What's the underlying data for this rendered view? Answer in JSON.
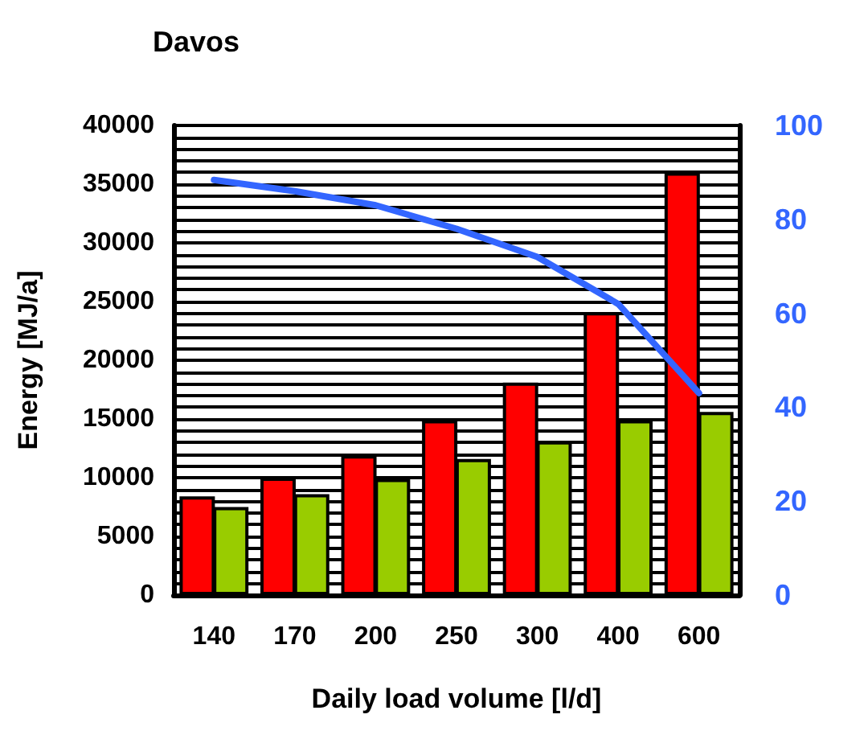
{
  "chart_data": {
    "type": "bar",
    "title": "Davos",
    "xlabel": "Daily load volume [l/d]",
    "ylabel": "Energy [MJ/a]",
    "categories": [
      "140",
      "170",
      "200",
      "250",
      "300",
      "400",
      "600"
    ],
    "series": [
      {
        "color": "#ff0000",
        "values": [
          8400,
          10000,
          11900,
          14900,
          18100,
          24100,
          36000
        ]
      },
      {
        "color": "#99cc00",
        "values": [
          7500,
          8600,
          9900,
          11600,
          13100,
          14900,
          15600
        ]
      },
      {
        "type": "line",
        "axis": "y2",
        "color": "#3366ff",
        "values": [
          88.4,
          86,
          83,
          78,
          72,
          62,
          43
        ]
      }
    ],
    "ylim": [
      0,
      40000
    ],
    "yticks": [
      0,
      5000,
      10000,
      15000,
      20000,
      25000,
      30000,
      35000,
      40000
    ],
    "y2lim": [
      0,
      100
    ],
    "y2ticks": [
      0,
      20,
      40,
      60,
      80,
      100
    ],
    "grid": "y",
    "marker": "none"
  }
}
